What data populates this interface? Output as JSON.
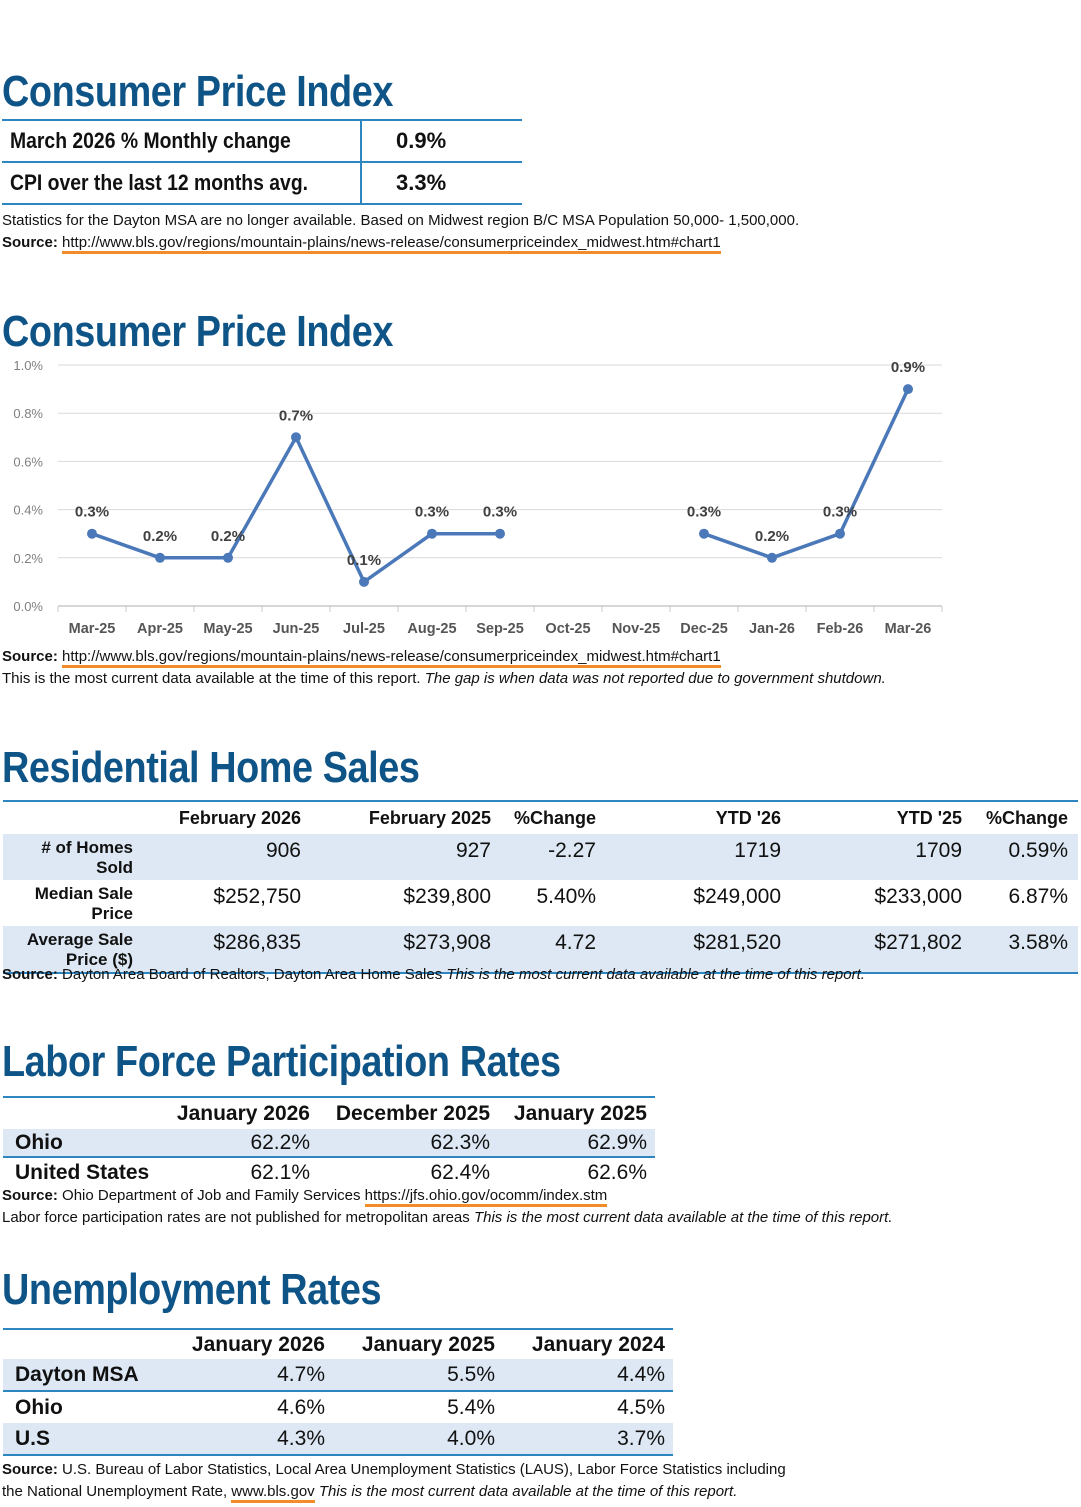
{
  "cpi_summary": {
    "title": "Consumer Price Index",
    "rows": [
      {
        "label": "March 2026 % Monthly change",
        "value": "0.9%"
      },
      {
        "label": "CPI over the last 12 months avg.",
        "value": "3.3%"
      }
    ],
    "note": "Statistics for the Dayton MSA are no longer available. Based on Midwest region B/C MSA Population 50,000- 1,500,000.",
    "source_label": "Source:",
    "source_url": "http://www.bls.gov/regions/mountain-plains/news-release/consumerpriceindex_midwest.htm#chart1"
  },
  "cpi_chart": {
    "title": "Consumer Price Index",
    "source_label": "Source:",
    "source_url": "http://www.bls.gov/regions/mountain-plains/news-release/consumerpriceindex_midwest.htm#chart1",
    "note": "This is the most current data available at the time of this report.",
    "note_italic": "The gap is when data was not reported due to government shutdown."
  },
  "chart_data": {
    "type": "line",
    "title": "Consumer Price Index",
    "categories": [
      "Mar-25",
      "Apr-25",
      "May-25",
      "Jun-25",
      "Jul-25",
      "Aug-25",
      "Sep-25",
      "Oct-25",
      "Nov-25",
      "Dec-25",
      "Jan-26",
      "Feb-26",
      "Mar-26"
    ],
    "series": [
      {
        "values": [
          0.3,
          0.2,
          0.2,
          0.7,
          0.1,
          0.3,
          0.3,
          null,
          null,
          0.3,
          0.2,
          0.3,
          0.9
        ],
        "labels": [
          "0.3%",
          "0.2%",
          "0.2%",
          "0.7%",
          "0.1%",
          "0.3%",
          "0.3%",
          "",
          "",
          "0.3%",
          "0.2%",
          "0.3%",
          "0.9%"
        ]
      }
    ],
    "yticks": [
      "0.0%",
      "0.2%",
      "0.4%",
      "0.6%",
      "0.8%",
      "1.0%"
    ],
    "ylim": [
      0,
      1.0
    ],
    "grid": true,
    "color": "#4a78b8"
  },
  "home_sales": {
    "title": "Residential Home Sales",
    "headers": [
      "",
      "February 2026",
      "February 2025",
      "%Change",
      "YTD '26",
      "YTD '25",
      "%Change"
    ],
    "rows": [
      {
        "label": [
          "# of Homes",
          "Sold"
        ],
        "cells": [
          "906",
          "927",
          "-2.27",
          "1719",
          "1709",
          "0.59%"
        ]
      },
      {
        "label": [
          "Median Sale",
          "Price"
        ],
        "cells": [
          "$252,750",
          "$239,800",
          "5.40%",
          "$249,000",
          "$233,000",
          "6.87%"
        ]
      },
      {
        "label": [
          "Average Sale",
          "Price ($)"
        ],
        "cells": [
          "$286,835",
          "$273,908",
          "4.72",
          "$281,520",
          "$271,802",
          "3.58%"
        ]
      }
    ],
    "source_label": "Source:",
    "source_text": "Dayton Area Board of Realtors, Dayton Area Home Sales",
    "source_italic": "This is the most current data available at the time of this report."
  },
  "labor": {
    "title": "Labor Force Participation Rates",
    "headers": [
      "",
      "January 2026",
      "December 2025",
      "January 2025"
    ],
    "rows": [
      {
        "label": "Ohio",
        "cells": [
          "62.2%",
          "62.3%",
          "62.9%"
        ]
      },
      {
        "label": "United States",
        "cells": [
          "62.1%",
          "62.4%",
          "62.6%"
        ]
      }
    ],
    "source_label": "Source:",
    "source_text": "Ohio Department of Job and Family Services",
    "source_url": "https://jfs.ohio.gov/ocomm/index.stm",
    "note": "Labor force participation rates are not published for metropolitan areas",
    "note_italic": "This is the most current data available at the time of this report."
  },
  "unemployment": {
    "title": "Unemployment Rates",
    "headers": [
      "",
      "January 2026",
      "January 2025",
      "January 2024"
    ],
    "rows": [
      {
        "label": "Dayton MSA",
        "cells": [
          "4.7%",
          "5.5%",
          "4.4%"
        ]
      },
      {
        "label": "Ohio",
        "cells": [
          "4.6%",
          "5.4%",
          "4.5%"
        ]
      },
      {
        "label": "U.S",
        "cells": [
          "4.3%",
          "4.0%",
          "3.7%"
        ]
      }
    ],
    "source_label": "Source:",
    "source_text": "U.S. Bureau of Labor Statistics, Local Area Unemployment Statistics (LAUS), Labor Force Statistics including",
    "source_text2": "the National Unemployment Rate,",
    "source_url": "www.bls.gov",
    "source_italic": "This is the most current data available at the time of this report."
  }
}
